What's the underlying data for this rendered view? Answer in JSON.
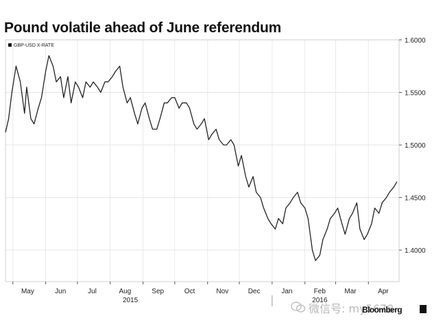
{
  "title": "Pound volatile ahead of June referendum",
  "watermark": "微信号: my5678",
  "brand": "Bloomberg",
  "chart_data": {
    "type": "line",
    "title": "Pound volatile ahead of June referendum",
    "legend": "GBP-USD X-RATE",
    "legend_position": "top-left",
    "y_axis_side": "right",
    "grid": true,
    "ylim": [
      1.37,
      1.6
    ],
    "yticks": [
      "1.6000",
      "1.5500",
      "1.5000",
      "1.4500",
      "1.4000"
    ],
    "months": [
      "May",
      "Jun",
      "Jul",
      "Aug",
      "Sep",
      "Oct",
      "Nov",
      "Dec",
      "Jan",
      "Feb",
      "Mar",
      "Apr"
    ],
    "years": [
      "2015",
      "2016"
    ],
    "line_color": "#222222",
    "series": [
      {
        "x": [
          "2015-04-24",
          "2015-04-27",
          "2015-04-30",
          "2015-05-04",
          "2015-05-08",
          "2015-05-12",
          "2015-05-14",
          "2015-05-18",
          "2015-05-21",
          "2015-05-25",
          "2015-05-28",
          "2015-06-01",
          "2015-06-04",
          "2015-06-08",
          "2015-06-11",
          "2015-06-15",
          "2015-06-18",
          "2015-06-22",
          "2015-06-25",
          "2015-06-29",
          "2015-07-02",
          "2015-07-06",
          "2015-07-09",
          "2015-07-13",
          "2015-07-16",
          "2015-07-20",
          "2015-07-23",
          "2015-07-27",
          "2015-07-30",
          "2015-08-03",
          "2015-08-06",
          "2015-08-10",
          "2015-08-13",
          "2015-08-17",
          "2015-08-20",
          "2015-08-24",
          "2015-08-27",
          "2015-08-31",
          "2015-09-03",
          "2015-09-07",
          "2015-09-10",
          "2015-09-14",
          "2015-09-17",
          "2015-09-21",
          "2015-09-24",
          "2015-09-28",
          "2015-10-01",
          "2015-10-05",
          "2015-10-08",
          "2015-10-12",
          "2015-10-15",
          "2015-10-19",
          "2015-10-22",
          "2015-10-26",
          "2015-10-29",
          "2015-11-02",
          "2015-11-05",
          "2015-11-09",
          "2015-11-12",
          "2015-11-16",
          "2015-11-19",
          "2015-11-23",
          "2015-11-26",
          "2015-11-30",
          "2015-12-03",
          "2015-12-07",
          "2015-12-10",
          "2015-12-14",
          "2015-12-17",
          "2015-12-21",
          "2015-12-24",
          "2015-12-28",
          "2015-12-31",
          "2016-01-04",
          "2016-01-07",
          "2016-01-11",
          "2016-01-14",
          "2016-01-18",
          "2016-01-21",
          "2016-01-25",
          "2016-01-28",
          "2016-02-01",
          "2016-02-04",
          "2016-02-08",
          "2016-02-11",
          "2016-02-15",
          "2016-02-18",
          "2016-02-22",
          "2016-02-25",
          "2016-02-29",
          "2016-03-03",
          "2016-03-07",
          "2016-03-10",
          "2016-03-14",
          "2016-03-17",
          "2016-03-21",
          "2016-03-24",
          "2016-03-28",
          "2016-03-31",
          "2016-04-04",
          "2016-04-07",
          "2016-04-11",
          "2016-04-14",
          "2016-04-18",
          "2016-04-21",
          "2016-04-25",
          "2016-04-28"
        ],
        "y": [
          1.512,
          1.525,
          1.55,
          1.575,
          1.56,
          1.53,
          1.555,
          1.525,
          1.52,
          1.535,
          1.545,
          1.57,
          1.585,
          1.575,
          1.56,
          1.565,
          1.545,
          1.565,
          1.54,
          1.56,
          1.555,
          1.545,
          1.56,
          1.555,
          1.56,
          1.555,
          1.55,
          1.56,
          1.56,
          1.565,
          1.57,
          1.575,
          1.555,
          1.54,
          1.545,
          1.53,
          1.52,
          1.535,
          1.54,
          1.525,
          1.515,
          1.515,
          1.525,
          1.54,
          1.54,
          1.545,
          1.545,
          1.535,
          1.54,
          1.54,
          1.535,
          1.52,
          1.515,
          1.52,
          1.525,
          1.505,
          1.51,
          1.515,
          1.505,
          1.5,
          1.5,
          1.505,
          1.5,
          1.48,
          1.49,
          1.47,
          1.46,
          1.47,
          1.455,
          1.45,
          1.44,
          1.43,
          1.425,
          1.42,
          1.43,
          1.425,
          1.44,
          1.445,
          1.45,
          1.455,
          1.445,
          1.44,
          1.43,
          1.4,
          1.39,
          1.395,
          1.41,
          1.42,
          1.43,
          1.435,
          1.44,
          1.425,
          1.415,
          1.43,
          1.435,
          1.445,
          1.42,
          1.41,
          1.415,
          1.425,
          1.44,
          1.435,
          1.445,
          1.45,
          1.455,
          1.46,
          1.465
        ]
      }
    ]
  }
}
